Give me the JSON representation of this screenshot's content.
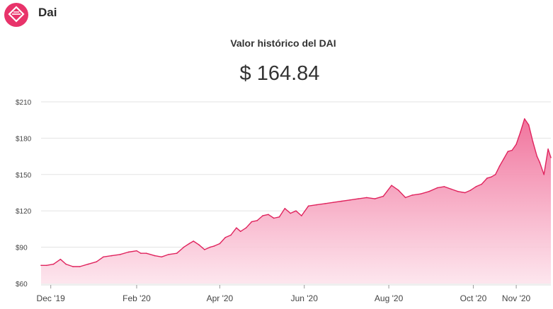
{
  "app": {
    "name": "Dai",
    "logo_icon": "dai-diamond-logo",
    "brand_color": "#e8336a"
  },
  "chart_header": {
    "title": "Valor histórico del DAI",
    "current_value": "$ 164.84"
  },
  "chart_data": {
    "type": "area",
    "title": "Valor histórico del DAI",
    "xlabel": "",
    "ylabel": "",
    "ylim": [
      60,
      210
    ],
    "y_ticks": [
      {
        "value": 60,
        "label": "$60"
      },
      {
        "value": 90,
        "label": "$90"
      },
      {
        "value": 120,
        "label": "$120"
      },
      {
        "value": 150,
        "label": "$150"
      },
      {
        "value": 180,
        "label": "$180"
      },
      {
        "value": 210,
        "label": "$210"
      }
    ],
    "x_range": [
      "2019-11-24",
      "2020-11-26"
    ],
    "x_ticks": [
      {
        "date": "2019-12-01",
        "label": "Dec '19"
      },
      {
        "date": "2020-02-01",
        "label": "Feb '20"
      },
      {
        "date": "2020-04-01",
        "label": "Apr '20"
      },
      {
        "date": "2020-06-01",
        "label": "Jun '20"
      },
      {
        "date": "2020-08-01",
        "label": "Aug '20"
      },
      {
        "date": "2020-10-01",
        "label": "Oct '20"
      },
      {
        "date": "2020-11-01",
        "label": "Nov '20"
      }
    ],
    "grid": true,
    "line_color": "#e0245e",
    "fill_color": "#f7a8c2",
    "series": [
      {
        "x": [
          "2019-11-24",
          "2019-11-28",
          "2019-12-03",
          "2019-12-08",
          "2019-12-12",
          "2019-12-17",
          "2019-12-22",
          "2019-12-28",
          "2020-01-03",
          "2020-01-08",
          "2020-01-14",
          "2020-01-20",
          "2020-01-26",
          "2020-02-01",
          "2020-02-04",
          "2020-02-08",
          "2020-02-14",
          "2020-02-19",
          "2020-02-24",
          "2020-03-01",
          "2020-03-06",
          "2020-03-10",
          "2020-03-13",
          "2020-03-17",
          "2020-03-21",
          "2020-03-25",
          "2020-03-28",
          "2020-04-01",
          "2020-04-05",
          "2020-04-09",
          "2020-04-13",
          "2020-04-16",
          "2020-04-20",
          "2020-04-24",
          "2020-04-28",
          "2020-05-02",
          "2020-05-06",
          "2020-05-10",
          "2020-05-14",
          "2020-05-18",
          "2020-05-22",
          "2020-05-26",
          "2020-05-30",
          "2020-06-04",
          "2020-06-10",
          "2020-06-16",
          "2020-06-22",
          "2020-06-28",
          "2020-07-04",
          "2020-07-10",
          "2020-07-16",
          "2020-07-22",
          "2020-07-28",
          "2020-08-03",
          "2020-08-08",
          "2020-08-13",
          "2020-08-18",
          "2020-08-24",
          "2020-08-30",
          "2020-09-05",
          "2020-09-10",
          "2020-09-15",
          "2020-09-20",
          "2020-09-25",
          "2020-09-29",
          "2020-10-03",
          "2020-10-07",
          "2020-10-11",
          "2020-10-14",
          "2020-10-17",
          "2020-10-20",
          "2020-10-23",
          "2020-10-26",
          "2020-10-29",
          "2020-11-01",
          "2020-11-04",
          "2020-11-07",
          "2020-11-10",
          "2020-11-13",
          "2020-11-16",
          "2020-11-18",
          "2020-11-21",
          "2020-11-24",
          "2020-11-26"
        ],
        "y": [
          75,
          75,
          76,
          80,
          76,
          74,
          74,
          76,
          78,
          82,
          83,
          84,
          86,
          87,
          85,
          85,
          83,
          82,
          84,
          85,
          90,
          93,
          95,
          92,
          88,
          90,
          91,
          93,
          98,
          100,
          106,
          103,
          106,
          111,
          112,
          116,
          117,
          114,
          115,
          122,
          118,
          120,
          116,
          124,
          125,
          126,
          127,
          128,
          129,
          130,
          131,
          130,
          132,
          141,
          137,
          131,
          133,
          134,
          136,
          139,
          140,
          138,
          136,
          135,
          137,
          140,
          142,
          147,
          148,
          150,
          157,
          163,
          169,
          170,
          175,
          185,
          196,
          191,
          177,
          165,
          160,
          150,
          171,
          164
        ]
      }
    ]
  }
}
